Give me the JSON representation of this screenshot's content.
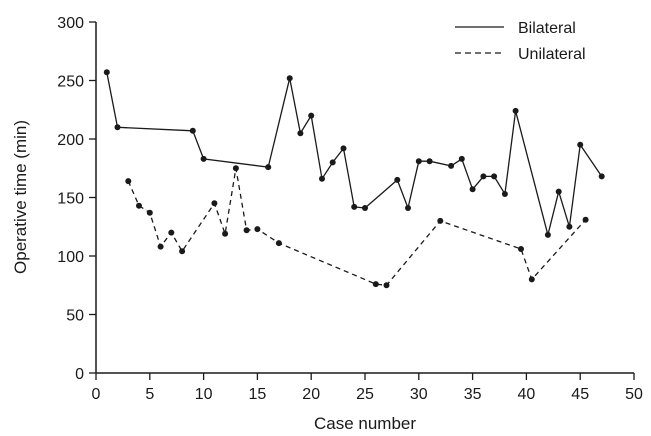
{
  "chart_data": {
    "type": "line",
    "xlabel": "Case number",
    "ylabel": "Operative time (min)",
    "xlim": [
      0,
      50
    ],
    "ylim": [
      0,
      300
    ],
    "x_ticks": [
      "0",
      "5",
      "10",
      "15",
      "20",
      "25",
      "30",
      "35",
      "40",
      "45",
      "50"
    ],
    "y_ticks": [
      "0",
      "50",
      "100",
      "150",
      "200",
      "250",
      "300"
    ],
    "grid": false,
    "legend_position": "top-right",
    "series": [
      {
        "name": "Bilateral",
        "line_style": "solid",
        "color": "#1a1a1a",
        "points": [
          [
            1,
            257
          ],
          [
            2,
            210
          ],
          [
            9,
            207
          ],
          [
            10,
            183
          ],
          [
            16,
            176
          ],
          [
            18,
            252
          ],
          [
            19,
            205
          ],
          [
            20,
            220
          ],
          [
            21,
            166
          ],
          [
            22,
            180
          ],
          [
            23,
            192
          ],
          [
            24,
            142
          ],
          [
            25,
            141
          ],
          [
            28,
            165
          ],
          [
            29,
            141
          ],
          [
            30,
            181
          ],
          [
            31,
            181
          ],
          [
            33,
            177
          ],
          [
            34,
            183
          ],
          [
            35,
            157
          ],
          [
            36,
            168
          ],
          [
            37,
            168
          ],
          [
            38,
            153
          ],
          [
            39,
            224
          ],
          [
            42,
            118
          ],
          [
            43,
            155
          ],
          [
            44,
            125
          ],
          [
            45,
            195
          ],
          [
            47,
            168
          ]
        ]
      },
      {
        "name": "Unilateral",
        "line_style": "dashed",
        "color": "#1a1a1a",
        "points": [
          [
            3,
            164
          ],
          [
            4,
            143
          ],
          [
            5,
            137
          ],
          [
            6,
            108
          ],
          [
            7,
            120
          ],
          [
            8,
            104
          ],
          [
            11,
            145
          ],
          [
            12,
            119
          ],
          [
            13,
            175
          ],
          [
            14,
            122
          ],
          [
            15,
            123
          ],
          [
            17,
            111
          ],
          [
            26,
            76
          ],
          [
            27,
            75
          ],
          [
            32,
            130
          ],
          [
            39.5,
            106
          ],
          [
            40.5,
            80
          ],
          [
            45.5,
            131
          ]
        ]
      }
    ]
  }
}
